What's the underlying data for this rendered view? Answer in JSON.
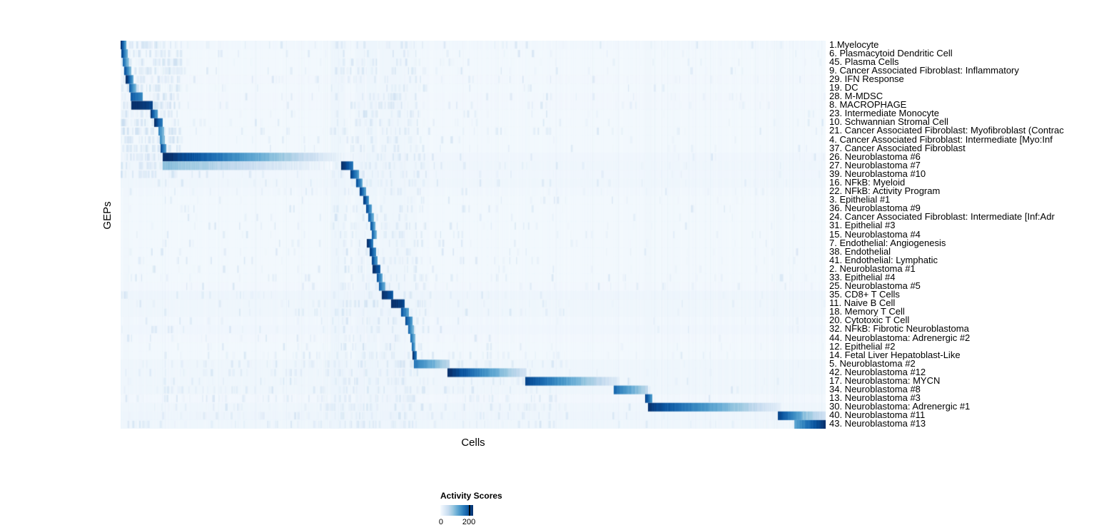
{
  "legend": {
    "tick_min_label": "0",
    "tick_max_label": "200"
  },
  "chart_data": {
    "type": "heatmap",
    "title": "",
    "xlabel": "Cells",
    "ylabel": "GEPs",
    "value_label": "Activity Scores",
    "colorbar": {
      "label": "Activity Scores",
      "min": 0,
      "max": 200,
      "palette": [
        "#f7fbff",
        "#deebf7",
        "#c6dbef",
        "#9ecae1",
        "#6baed6",
        "#4292c6",
        "#2171b5",
        "#08519c",
        "#08306b"
      ]
    },
    "n_rows": 45,
    "layout": {
      "cells_ordered_by_cluster": true,
      "diagonal_block_structure": true
    },
    "rows": [
      {
        "label": "1.Myelocyte",
        "wash": 8,
        "segments": [
          [
            0.0,
            0.007,
            200,
            110
          ]
        ]
      },
      {
        "label": "6. Plasmacytoid Dendritic Cell",
        "wash": 5,
        "segments": [
          [
            0.002,
            0.009,
            180,
            100
          ]
        ]
      },
      {
        "label": "45. Plasma Cells",
        "wash": 5,
        "segments": [
          [
            0.004,
            0.011,
            150,
            80
          ]
        ]
      },
      {
        "label": "9. Cancer Associated Fibroblast: Inflammatory",
        "wash": 5,
        "segments": [
          [
            0.006,
            0.014,
            170,
            90
          ]
        ]
      },
      {
        "label": "29. IFN Response",
        "wash": 6,
        "segments": [
          [
            0.008,
            0.017,
            200,
            110
          ]
        ]
      },
      {
        "label": "19. DC",
        "wash": 5,
        "segments": [
          [
            0.013,
            0.021,
            160,
            90
          ]
        ]
      },
      {
        "label": "28. M-MDSC",
        "wash": 6,
        "segments": [
          [
            0.015,
            0.03,
            170,
            130
          ]
        ]
      },
      {
        "label": "8. MACROPHAGE",
        "wash": 6,
        "segments": [
          [
            0.016,
            0.044,
            205,
            185
          ]
        ]
      },
      {
        "label": "23. Intermediate Monocyte",
        "wash": 5,
        "segments": [
          [
            0.043,
            0.051,
            190,
            120
          ]
        ]
      },
      {
        "label": "10. Schwannian Stromal Cell",
        "wash": 5,
        "segments": [
          [
            0.048,
            0.058,
            200,
            140
          ]
        ]
      },
      {
        "label": "21. Cancer Associated Fibroblast: Myofibroblast (Contrac",
        "wash": 5,
        "segments": [
          [
            0.054,
            0.06,
            140,
            90
          ]
        ]
      },
      {
        "label": "4. Cancer Associated Fibroblast: Intermediate [Myo:Inf",
        "wash": 5,
        "segments": [
          [
            0.056,
            0.061,
            130,
            85
          ]
        ]
      },
      {
        "label": "37. Cancer Associated Fibroblast",
        "wash": 5,
        "segments": [
          [
            0.057,
            0.063,
            180,
            120
          ]
        ]
      },
      {
        "label": "26. Neuroblastoma #6",
        "wash": 10,
        "segments": [
          [
            0.06,
            0.315,
            205,
            8
          ]
        ]
      },
      {
        "label": "27. Neuroblastoma #7",
        "wash": 13,
        "segments": [
          [
            0.06,
            0.3,
            85,
            5
          ],
          [
            0.313,
            0.328,
            200,
            150
          ]
        ]
      },
      {
        "label": "39. Neuroblastoma #10",
        "wash": 10,
        "segments": [
          [
            0.326,
            0.337,
            190,
            120
          ]
        ]
      },
      {
        "label": "16. NFkB: Myeloid",
        "wash": 11,
        "segments": [
          [
            0.335,
            0.342,
            170,
            110
          ]
        ]
      },
      {
        "label": "22. NFkB: Activity Program",
        "wash": 8,
        "segments": [
          [
            0.34,
            0.347,
            180,
            115
          ]
        ]
      },
      {
        "label": "3. Epithelial #1",
        "wash": 5,
        "segments": [
          [
            0.345,
            0.351,
            190,
            125
          ]
        ]
      },
      {
        "label": "36. Neuroblastoma #9",
        "wash": 5,
        "segments": [
          [
            0.349,
            0.355,
            175,
            115
          ]
        ]
      },
      {
        "label": "24. Cancer Associated Fibroblast: Intermediate [Inf:Adr",
        "wash": 5,
        "segments": [
          [
            0.352,
            0.358,
            160,
            100
          ]
        ]
      },
      {
        "label": "31. Epithelial #3",
        "wash": 5,
        "segments": [
          [
            0.355,
            0.36,
            170,
            105
          ]
        ]
      },
      {
        "label": "15. Neuroblastoma #4",
        "wash": 5,
        "segments": [
          [
            0.357,
            0.362,
            160,
            100
          ]
        ]
      },
      {
        "label": "7. Endothelial: Angiogenesis",
        "wash": 5,
        "segments": [
          [
            0.35,
            0.357,
            200,
            145
          ]
        ]
      },
      {
        "label": "38. Endothelial",
        "wash": 5,
        "segments": [
          [
            0.354,
            0.361,
            190,
            135
          ]
        ]
      },
      {
        "label": "41. Endothelial: Lymphatic",
        "wash": 5,
        "segments": [
          [
            0.357,
            0.363,
            180,
            120
          ]
        ]
      },
      {
        "label": "2. Neuroblastoma #1",
        "wash": 5,
        "segments": [
          [
            0.358,
            0.367,
            205,
            165
          ]
        ]
      },
      {
        "label": "33. Epithelial #4",
        "wash": 5,
        "segments": [
          [
            0.364,
            0.37,
            170,
            110
          ]
        ]
      },
      {
        "label": "25. Neuroblastoma #5",
        "wash": 6,
        "segments": [
          [
            0.367,
            0.374,
            160,
            100
          ]
        ]
      },
      {
        "label": "35. CD8+ T Cells",
        "wash": 15,
        "segments": [
          [
            0.371,
            0.385,
            200,
            170
          ]
        ]
      },
      {
        "label": "11. Naive B Cell",
        "wash": 13,
        "segments": [
          [
            0.384,
            0.401,
            205,
            185
          ]
        ]
      },
      {
        "label": "18. Memory T Cell",
        "wash": 11,
        "segments": [
          [
            0.398,
            0.407,
            170,
            115
          ]
        ]
      },
      {
        "label": "20. Cytotoxic T Cell",
        "wash": 8,
        "segments": [
          [
            0.404,
            0.412,
            180,
            120
          ]
        ]
      },
      {
        "label": "32. NFkB: Fibrotic Neuroblastoma",
        "wash": 9,
        "segments": [
          [
            0.408,
            0.414,
            160,
            100
          ]
        ]
      },
      {
        "label": "44. Neuroblastoma: Adrenergic #2",
        "wash": 6,
        "segments": [
          [
            0.411,
            0.416,
            150,
            95
          ]
        ]
      },
      {
        "label": "12. Epithelial #2",
        "wash": 5,
        "segments": [
          [
            0.413,
            0.417,
            155,
            100
          ]
        ]
      },
      {
        "label": "14. Fetal Liver Hepatoblast-Like",
        "wash": 5,
        "segments": [
          [
            0.414,
            0.419,
            200,
            145
          ]
        ]
      },
      {
        "label": "5. Neuroblastoma #2",
        "wash": 11,
        "segments": [
          [
            0.417,
            0.465,
            145,
            55
          ]
        ]
      },
      {
        "label": "42. Neuroblastoma #12",
        "wash": 13,
        "segments": [
          [
            0.464,
            0.574,
            205,
            35
          ]
        ]
      },
      {
        "label": "17. Neuroblastoma: MYCN",
        "wash": 11,
        "segments": [
          [
            0.574,
            0.706,
            185,
            20
          ]
        ]
      },
      {
        "label": "34. Neuroblastoma #8",
        "wash": 13,
        "segments": [
          [
            0.7,
            0.746,
            155,
            55
          ]
        ]
      },
      {
        "label": "13. Neuroblastoma #3",
        "wash": 6,
        "segments": [
          [
            0.744,
            0.753,
            185,
            120
          ]
        ]
      },
      {
        "label": "30. Neuroblastoma: Adrenergic #1",
        "wash": 11,
        "segments": [
          [
            0.748,
            0.936,
            195,
            18
          ]
        ]
      },
      {
        "label": "40. Neuroblastoma #11",
        "wash": 15,
        "segments": [
          [
            0.933,
            0.968,
            185,
            95
          ],
          [
            0.968,
            1.0,
            85,
            35
          ]
        ]
      },
      {
        "label": "43. Neuroblastoma #13",
        "wash": 13,
        "segments": [
          [
            0.956,
            1.0,
            110,
            205
          ]
        ]
      }
    ],
    "vstripes": [
      [
        0.004,
        0.012,
        8
      ],
      [
        0.298,
        0.318,
        13
      ],
      [
        0.333,
        0.346,
        11
      ],
      [
        0.35,
        0.364,
        13
      ],
      [
        0.368,
        0.402,
        11
      ],
      [
        0.404,
        0.42,
        9
      ],
      [
        0.574,
        0.579,
        7
      ],
      [
        0.743,
        0.753,
        9
      ],
      [
        0.932,
        0.94,
        9
      ]
    ]
  }
}
